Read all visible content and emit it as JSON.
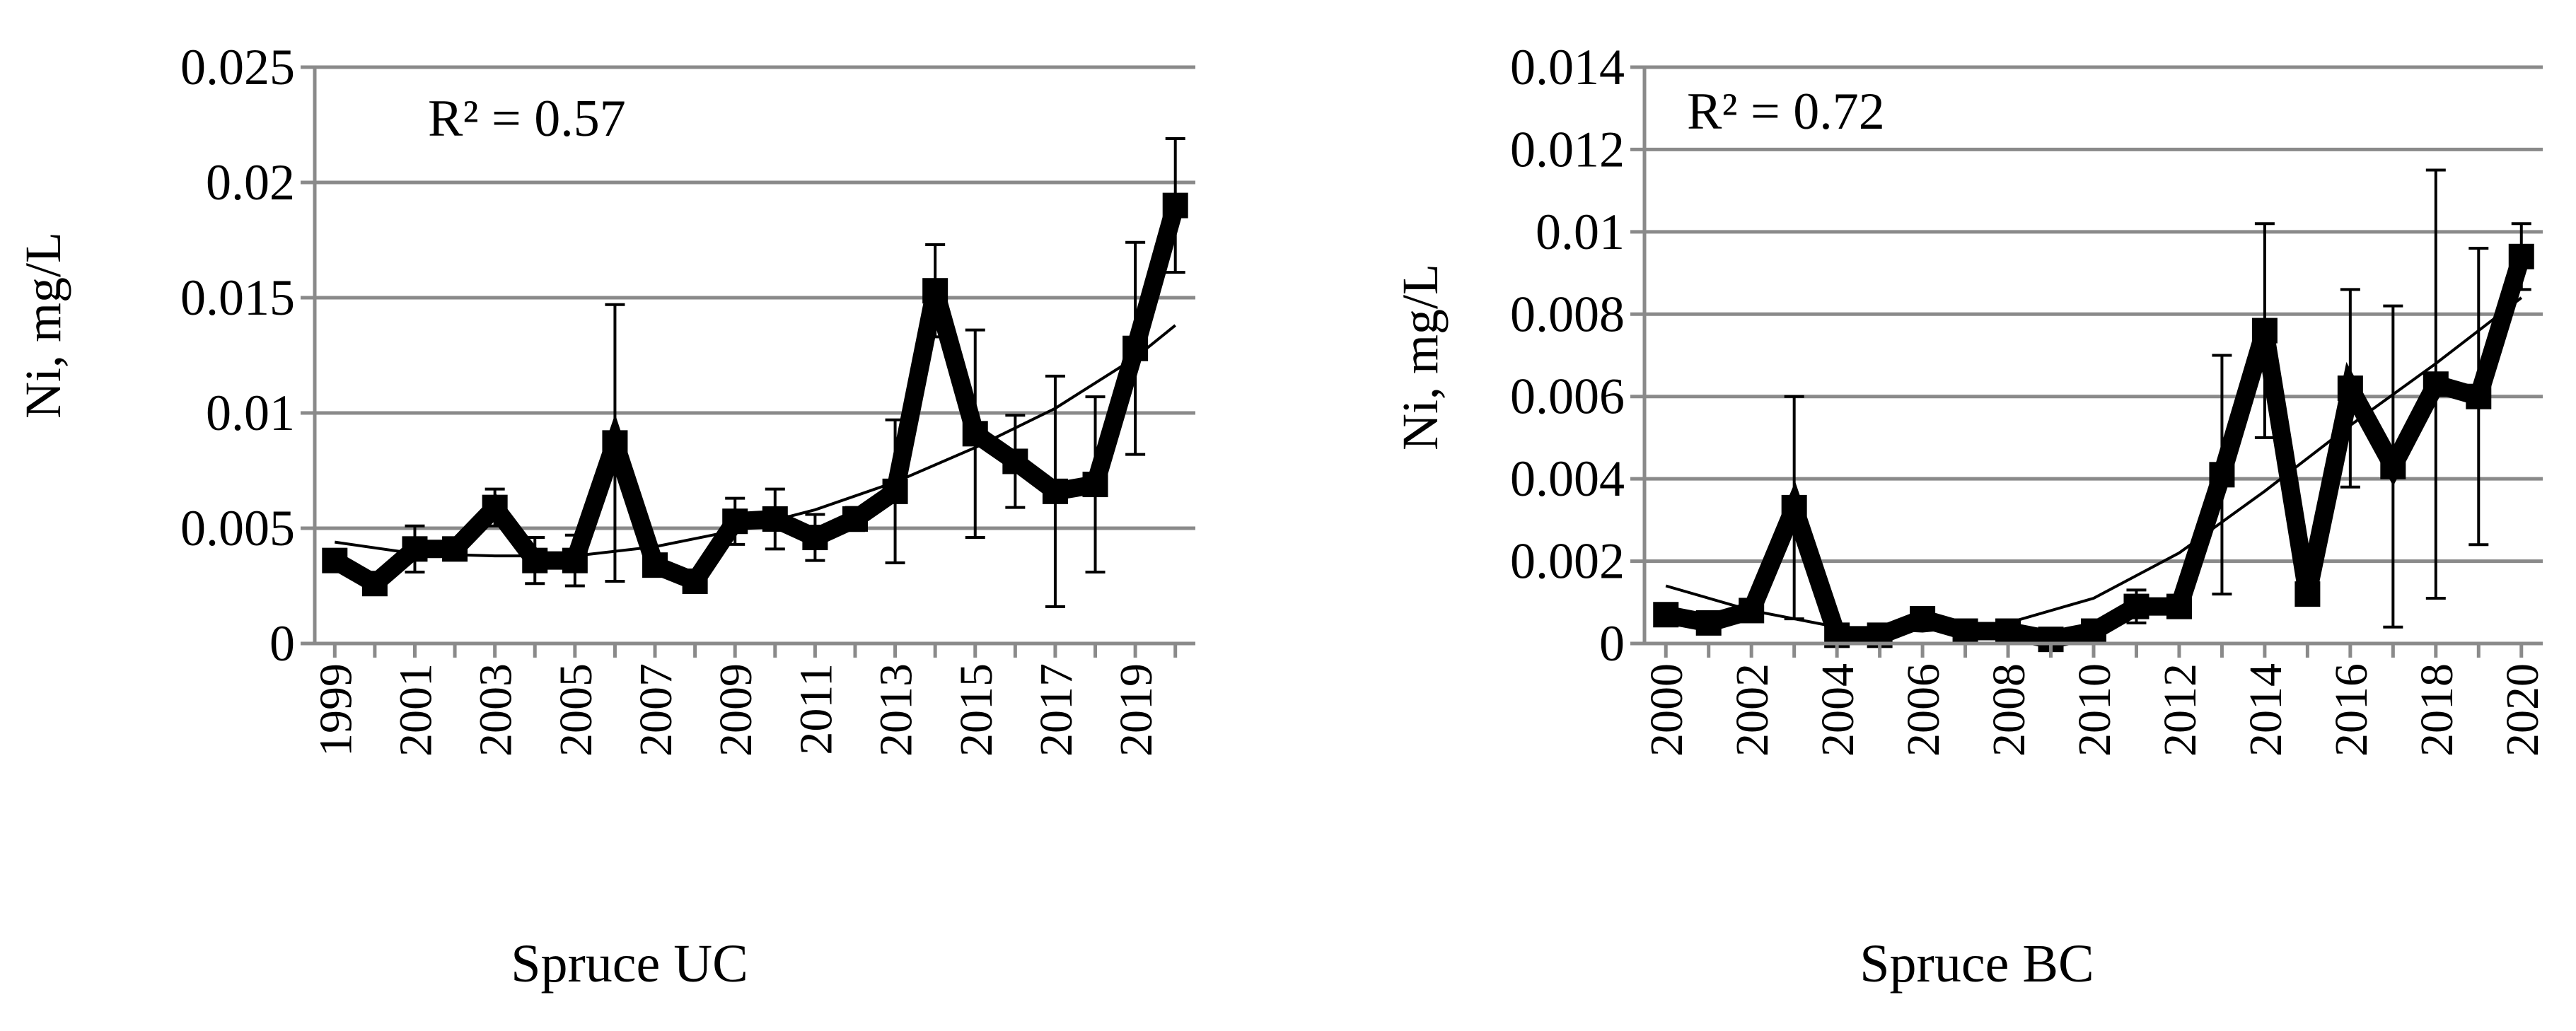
{
  "chart_data": [
    {
      "type": "line",
      "xlabel": "Spruce UC",
      "ylabel": "Ni, mg/L",
      "ylim": [
        0,
        0.025
      ],
      "yticks": [
        "0",
        "0.005",
        "0.01",
        "0.015",
        "0.02",
        "0.025"
      ],
      "xtick_labels": [
        "1999",
        "2001",
        "2003",
        "2005",
        "2007",
        "2009",
        "2011",
        "2013",
        "2015",
        "2017",
        "2019"
      ],
      "annotation": "R² = 0.57",
      "grid": true,
      "legend": "none",
      "series": [
        {
          "x": [
            1999,
            2000,
            2001,
            2002,
            2003,
            2004,
            2005,
            2006,
            2007,
            2008,
            2009,
            2010,
            2011,
            2012,
            2013,
            2014,
            2015,
            2016,
            2017,
            2018,
            2019,
            2020
          ],
          "y": [
            0.0036,
            0.0026,
            0.0041,
            0.0041,
            0.0059,
            0.0036,
            0.0036,
            0.0087,
            0.0034,
            0.0027,
            0.0053,
            0.0054,
            0.0046,
            0.0054,
            0.0066,
            0.0153,
            0.0091,
            0.0079,
            0.0066,
            0.0069,
            0.0128,
            0.019
          ],
          "err": [
            0.0003,
            0.0003,
            0.001,
            0.0004,
            0.0008,
            0.001,
            0.0011,
            0.006,
            0.0003,
            0.0004,
            0.001,
            0.0013,
            0.001,
            0.0005,
            0.0031,
            0.002,
            0.0045,
            0.002,
            0.005,
            0.0038,
            0.0046,
            0.0029
          ]
        }
      ],
      "trend": {
        "type": "polynomial",
        "points": [
          [
            1999,
            0.0044
          ],
          [
            2001,
            0.0039
          ],
          [
            2003,
            0.0038
          ],
          [
            2005,
            0.0038
          ],
          [
            2007,
            0.0042
          ],
          [
            2009,
            0.0049
          ],
          [
            2011,
            0.0058
          ],
          [
            2013,
            0.007
          ],
          [
            2015,
            0.0085
          ],
          [
            2017,
            0.0102
          ],
          [
            2019,
            0.0124
          ],
          [
            2020,
            0.0138
          ]
        ]
      }
    },
    {
      "type": "line",
      "xlabel": "Spruce BC",
      "ylabel": "Ni, mg/L",
      "ylim": [
        0,
        0.014
      ],
      "yticks": [
        "0",
        "0.002",
        "0.004",
        "0.006",
        "0.008",
        "0.01",
        "0.012",
        "0.014"
      ],
      "xtick_labels": [
        "2000",
        "2002",
        "2004",
        "2006",
        "2008",
        "2010",
        "2012",
        "2014",
        "2016",
        "2018",
        "2020"
      ],
      "annotation": "R² = 0.72",
      "grid": true,
      "legend": "none",
      "series": [
        {
          "x": [
            2000,
            2001,
            2002,
            2003,
            2004,
            2005,
            2006,
            2007,
            2008,
            2009,
            2010,
            2011,
            2012,
            2013,
            2014,
            2015,
            2016,
            2017,
            2018,
            2019,
            2020
          ],
          "y": [
            0.0007,
            0.0005,
            0.0008,
            0.0033,
            0.0002,
            0.0002,
            0.0006,
            0.0003,
            0.0003,
            0.0001,
            0.0003,
            0.0009,
            0.0009,
            0.0041,
            0.0076,
            0.0012,
            0.0062,
            0.0043,
            0.0063,
            0.006,
            0.0094
          ],
          "err": [
            0,
            0,
            0,
            0.0027,
            0,
            0,
            0,
            0,
            0,
            0,
            0,
            0.0004,
            0,
            0.0029,
            0.0026,
            0,
            0.0024,
            0.0039,
            0.0052,
            0.0036,
            0.0008
          ]
        }
      ],
      "trend": {
        "type": "polynomial",
        "points": [
          [
            2000,
            0.0014
          ],
          [
            2002,
            0.0008
          ],
          [
            2004,
            0.0004
          ],
          [
            2006,
            0.0003
          ],
          [
            2008,
            0.0005
          ],
          [
            2010,
            0.0011
          ],
          [
            2012,
            0.0022
          ],
          [
            2014,
            0.0037
          ],
          [
            2016,
            0.0053
          ],
          [
            2018,
            0.0068
          ],
          [
            2020,
            0.0084
          ]
        ]
      }
    }
  ]
}
